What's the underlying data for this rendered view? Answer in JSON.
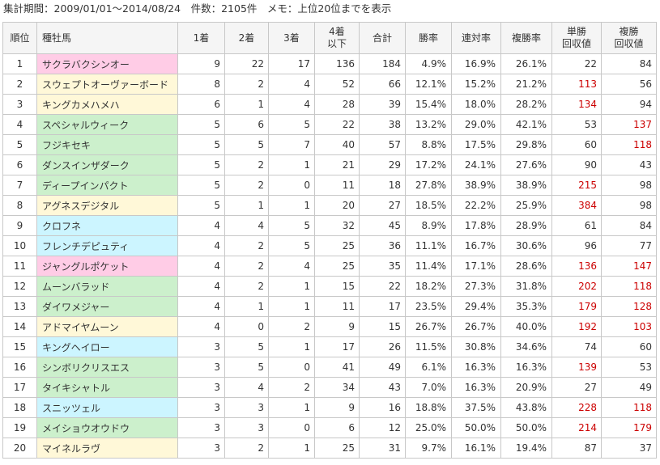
{
  "caption": "集計期間：2009/01/01～2014/08/24　件数：2105件　メモ：上位20位までを表示",
  "headers": [
    "順位",
    "種牡馬",
    "1着",
    "2着",
    "3着",
    "4着\n以下",
    "合計",
    "勝率",
    "連対率",
    "複勝率",
    "単勝\n回収値",
    "複勝\n回収値"
  ],
  "rows": [
    {
      "rank": "1",
      "sire": "サクラバクシンオー",
      "c1": "9",
      "c2": "22",
      "c3": "17",
      "c4": "136",
      "total": "184",
      "win": "4.9%",
      "place2": "16.9%",
      "place3": "26.1%",
      "tan": "22",
      "fuku": "84",
      "tan_red": false,
      "fuku_red": false,
      "color": "pink"
    },
    {
      "rank": "2",
      "sire": "スウェプトオーヴァーボード",
      "c1": "8",
      "c2": "2",
      "c3": "4",
      "c4": "52",
      "total": "66",
      "win": "12.1%",
      "place2": "15.2%",
      "place3": "21.2%",
      "tan": "113",
      "fuku": "56",
      "tan_red": true,
      "fuku_red": false,
      "color": "yellow"
    },
    {
      "rank": "3",
      "sire": "キングカメハメハ",
      "c1": "6",
      "c2": "1",
      "c3": "4",
      "c4": "28",
      "total": "39",
      "win": "15.4%",
      "place2": "18.0%",
      "place3": "28.2%",
      "tan": "134",
      "fuku": "94",
      "tan_red": true,
      "fuku_red": false,
      "color": "yellow"
    },
    {
      "rank": "4",
      "sire": "スペシャルウィーク",
      "c1": "5",
      "c2": "6",
      "c3": "5",
      "c4": "22",
      "total": "38",
      "win": "13.2%",
      "place2": "29.0%",
      "place3": "42.1%",
      "tan": "53",
      "fuku": "137",
      "tan_red": false,
      "fuku_red": true,
      "color": "green"
    },
    {
      "rank": "5",
      "sire": "フジキセキ",
      "c1": "5",
      "c2": "5",
      "c3": "7",
      "c4": "40",
      "total": "57",
      "win": "8.8%",
      "place2": "17.5%",
      "place3": "29.8%",
      "tan": "60",
      "fuku": "118",
      "tan_red": false,
      "fuku_red": true,
      "color": "green"
    },
    {
      "rank": "6",
      "sire": "ダンスインザダーク",
      "c1": "5",
      "c2": "2",
      "c3": "1",
      "c4": "21",
      "total": "29",
      "win": "17.2%",
      "place2": "24.1%",
      "place3": "27.6%",
      "tan": "90",
      "fuku": "43",
      "tan_red": false,
      "fuku_red": false,
      "color": "green"
    },
    {
      "rank": "7",
      "sire": "ディープインパクト",
      "c1": "5",
      "c2": "2",
      "c3": "0",
      "c4": "11",
      "total": "18",
      "win": "27.8%",
      "place2": "38.9%",
      "place3": "38.9%",
      "tan": "215",
      "fuku": "98",
      "tan_red": true,
      "fuku_red": false,
      "color": "green"
    },
    {
      "rank": "8",
      "sire": "アグネスデジタル",
      "c1": "5",
      "c2": "1",
      "c3": "1",
      "c4": "20",
      "total": "27",
      "win": "18.5%",
      "place2": "22.2%",
      "place3": "25.9%",
      "tan": "384",
      "fuku": "98",
      "tan_red": true,
      "fuku_red": false,
      "color": "yellow"
    },
    {
      "rank": "9",
      "sire": "クロフネ",
      "c1": "4",
      "c2": "4",
      "c3": "5",
      "c4": "32",
      "total": "45",
      "win": "8.9%",
      "place2": "17.8%",
      "place3": "28.9%",
      "tan": "61",
      "fuku": "84",
      "tan_red": false,
      "fuku_red": false,
      "color": "cyan"
    },
    {
      "rank": "10",
      "sire": "フレンチデピュティ",
      "c1": "4",
      "c2": "2",
      "c3": "5",
      "c4": "25",
      "total": "36",
      "win": "11.1%",
      "place2": "16.7%",
      "place3": "30.6%",
      "tan": "96",
      "fuku": "77",
      "tan_red": false,
      "fuku_red": false,
      "color": "cyan"
    },
    {
      "rank": "11",
      "sire": "ジャングルポケット",
      "c1": "4",
      "c2": "2",
      "c3": "4",
      "c4": "25",
      "total": "35",
      "win": "11.4%",
      "place2": "17.1%",
      "place3": "28.6%",
      "tan": "136",
      "fuku": "147",
      "tan_red": true,
      "fuku_red": true,
      "color": "pink"
    },
    {
      "rank": "12",
      "sire": "ムーンバラッド",
      "c1": "4",
      "c2": "2",
      "c3": "1",
      "c4": "15",
      "total": "22",
      "win": "18.2%",
      "place2": "27.3%",
      "place3": "31.8%",
      "tan": "202",
      "fuku": "118",
      "tan_red": true,
      "fuku_red": true,
      "color": "green"
    },
    {
      "rank": "13",
      "sire": "ダイワメジャー",
      "c1": "4",
      "c2": "1",
      "c3": "1",
      "c4": "11",
      "total": "17",
      "win": "23.5%",
      "place2": "29.4%",
      "place3": "35.3%",
      "tan": "179",
      "fuku": "128",
      "tan_red": true,
      "fuku_red": true,
      "color": "green"
    },
    {
      "rank": "14",
      "sire": "アドマイヤムーン",
      "c1": "4",
      "c2": "0",
      "c3": "2",
      "c4": "9",
      "total": "15",
      "win": "26.7%",
      "place2": "26.7%",
      "place3": "40.0%",
      "tan": "192",
      "fuku": "103",
      "tan_red": true,
      "fuku_red": true,
      "color": "yellow"
    },
    {
      "rank": "15",
      "sire": "キングヘイロー",
      "c1": "3",
      "c2": "5",
      "c3": "1",
      "c4": "17",
      "total": "26",
      "win": "11.5%",
      "place2": "30.8%",
      "place3": "34.6%",
      "tan": "74",
      "fuku": "60",
      "tan_red": false,
      "fuku_red": false,
      "color": "cyan"
    },
    {
      "rank": "16",
      "sire": "シンボリクリスエス",
      "c1": "3",
      "c2": "5",
      "c3": "0",
      "c4": "41",
      "total": "49",
      "win": "6.1%",
      "place2": "16.3%",
      "place3": "16.3%",
      "tan": "139",
      "fuku": "53",
      "tan_red": true,
      "fuku_red": false,
      "color": "green"
    },
    {
      "rank": "17",
      "sire": "タイキシャトル",
      "c1": "3",
      "c2": "4",
      "c3": "2",
      "c4": "34",
      "total": "43",
      "win": "7.0%",
      "place2": "16.3%",
      "place3": "20.9%",
      "tan": "27",
      "fuku": "49",
      "tan_red": false,
      "fuku_red": false,
      "color": "green"
    },
    {
      "rank": "18",
      "sire": "スニッツェル",
      "c1": "3",
      "c2": "3",
      "c3": "1",
      "c4": "9",
      "total": "16",
      "win": "18.8%",
      "place2": "37.5%",
      "place3": "43.8%",
      "tan": "228",
      "fuku": "118",
      "tan_red": true,
      "fuku_red": true,
      "color": "cyan"
    },
    {
      "rank": "19",
      "sire": "メイショウオウドウ",
      "c1": "3",
      "c2": "3",
      "c3": "0",
      "c4": "6",
      "total": "12",
      "win": "25.0%",
      "place2": "50.0%",
      "place3": "50.0%",
      "tan": "214",
      "fuku": "179",
      "tan_red": true,
      "fuku_red": true,
      "color": "green"
    },
    {
      "rank": "20",
      "sire": "マイネルラヴ",
      "c1": "3",
      "c2": "2",
      "c3": "1",
      "c4": "25",
      "total": "31",
      "win": "9.7%",
      "place2": "16.1%",
      "place3": "19.4%",
      "tan": "87",
      "fuku": "37",
      "tan_red": false,
      "fuku_red": false,
      "color": "yellow"
    }
  ],
  "colors": {
    "pink": "#ffcce6",
    "yellow": "#fff8d8",
    "green": "#ccf0cc",
    "cyan": "#ccf5ff",
    "red": "#cc0000"
  }
}
